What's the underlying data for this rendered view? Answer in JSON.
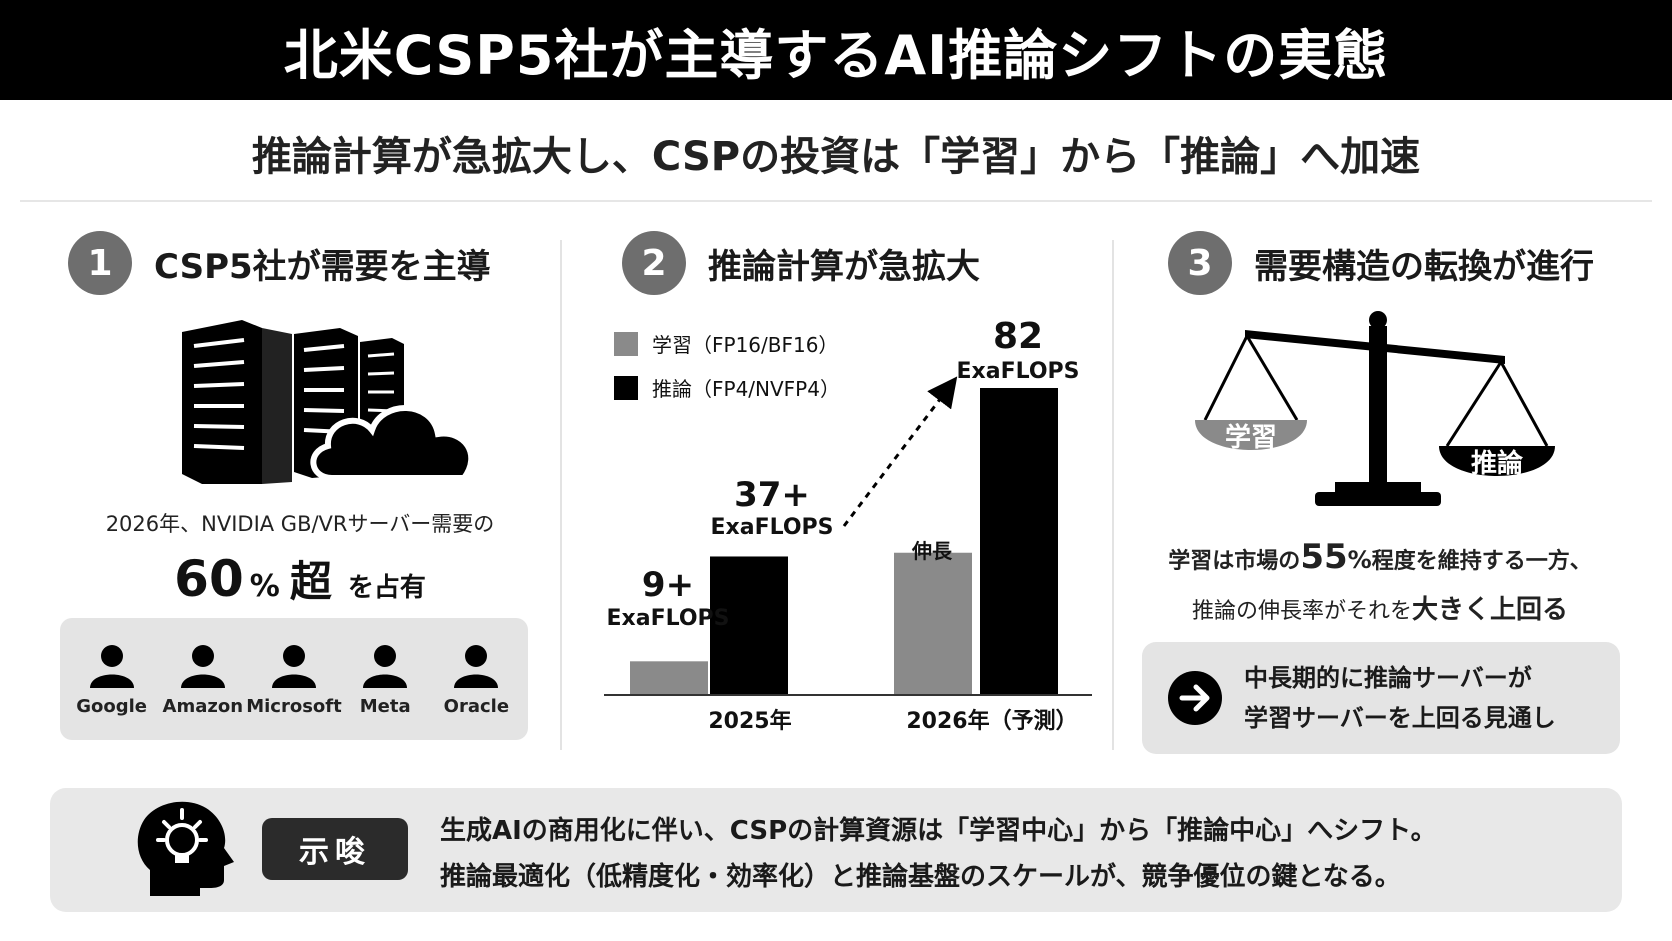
{
  "title": "北米CSP5社が主導するAI推論シフトの実態",
  "subtitle": "推論計算が急拡大し、CSPの投資は「学習」から「推論」へ加速",
  "section1": {
    "num": "1",
    "title": "CSP5社が需要を主導",
    "text": "2026年、NVIDIA GB/VRサーバー需要の",
    "big_num": "60",
    "big_pct": "%",
    "big_super": "超",
    "big_tail": "を占有",
    "companies": [
      "Google",
      "Amazon",
      "Microsoft",
      "Meta",
      "Oracle"
    ]
  },
  "section2": {
    "num": "2",
    "title": "推論計算が急拡大"
  },
  "chart_data": {
    "type": "bar",
    "categories": [
      "2025年",
      "2026年（予測）"
    ],
    "series": [
      {
        "name": "学習（FP16/BF16）",
        "color": "#8a8a8a",
        "values": [
          null,
          null
        ],
        "labels": [
          "",
          "伸長"
        ]
      },
      {
        "name": "推論（FP4/NVFP4）",
        "color": "#000000",
        "values": [
          37,
          82
        ],
        "labels": [
          "37+ ExaFLOPS",
          "82 ExaFLOPS"
        ]
      }
    ],
    "annotations": [
      "9+",
      "ExaFLOPS",
      "37+",
      "ExaFLOPS",
      "82",
      "ExaFLOPS",
      "伸長"
    ],
    "legend_position": "top-left",
    "grid": false
  },
  "section3": {
    "num": "3",
    "title": "需要構造の転換が進行",
    "pan_left": "学習",
    "pan_right": "推論",
    "line1_a": "学習は市場の",
    "line1_num": "55",
    "line1_pct": "%",
    "line1_b": "程度を維持する一方、",
    "line2_a": "推論の伸長率がそれを",
    "line2_em": "大きく上回る",
    "outlook_line1": "中長期的に推論サーバーが",
    "outlook_line2": "学習サーバーを上回る見通し"
  },
  "implication": {
    "badge": "示唆",
    "line1": "生成AIの商用化に伴い、CSPの計算資源は「学習中心」から「推論中心」へシフト。",
    "line2": "推論最適化（低精度化・効率化）と推論基盤のスケールが、競争優位の鍵となる。"
  }
}
